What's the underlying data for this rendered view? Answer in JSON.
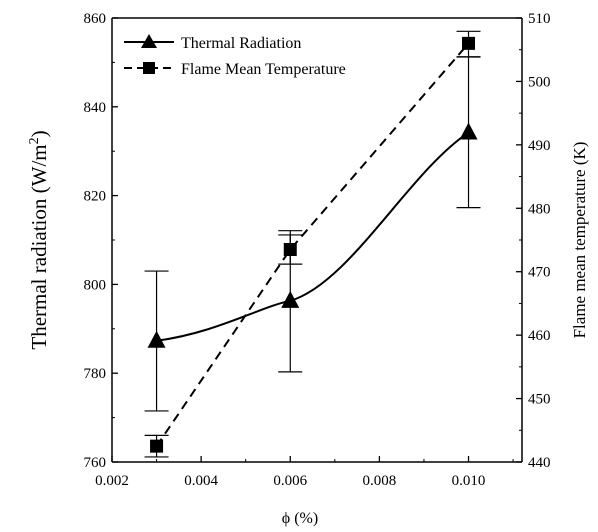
{
  "chart_data": {
    "type": "line",
    "x": [
      0.003,
      0.006,
      0.01
    ],
    "xlim": [
      0.002,
      0.0112
    ],
    "x_ticks": [
      "0.002",
      "0.004",
      "0.006",
      "0.008",
      "0.010"
    ],
    "x_tick_values": [
      0.002,
      0.004,
      0.006,
      0.008,
      0.01
    ],
    "xlabel": "ϕ (%)",
    "ylabel_left_main": "Thermal radiation (W/m",
    "ylabel_left_sup": "2",
    "ylabel_left_tail": ")",
    "ylim_left": [
      760,
      860
    ],
    "y_ticks_left": [
      "760",
      "780",
      "800",
      "820",
      "840",
      "860"
    ],
    "y_tick_values_left": [
      760,
      780,
      800,
      820,
      840,
      860
    ],
    "ylabel_right": "Flame mean temperature (K)",
    "ylim_right": [
      440,
      510
    ],
    "y_ticks_right": [
      "440",
      "450",
      "460",
      "470",
      "480",
      "490",
      "500",
      "510"
    ],
    "y_tick_values_right": [
      440,
      450,
      460,
      470,
      480,
      490,
      500,
      510
    ],
    "series": [
      {
        "name": "Thermal Radiation",
        "axis": "left",
        "marker": "triangle",
        "line": "solid",
        "values": [
          787.3,
          796.3,
          834.2
        ],
        "err_low": [
          771.5,
          780.3,
          817.3
        ],
        "err_high": [
          803.0,
          812.1,
          851.2
        ]
      },
      {
        "name": "Flame Mean Temperature",
        "axis": "right",
        "marker": "square",
        "line": "dashed",
        "values": [
          442.5,
          473.5,
          506.0
        ],
        "err_low": [
          440.8,
          471.2,
          503.9
        ],
        "err_high": [
          444.2,
          475.8,
          507.9
        ]
      }
    ],
    "legend_position": "top-left",
    "grid": false,
    "color": "#000000"
  }
}
